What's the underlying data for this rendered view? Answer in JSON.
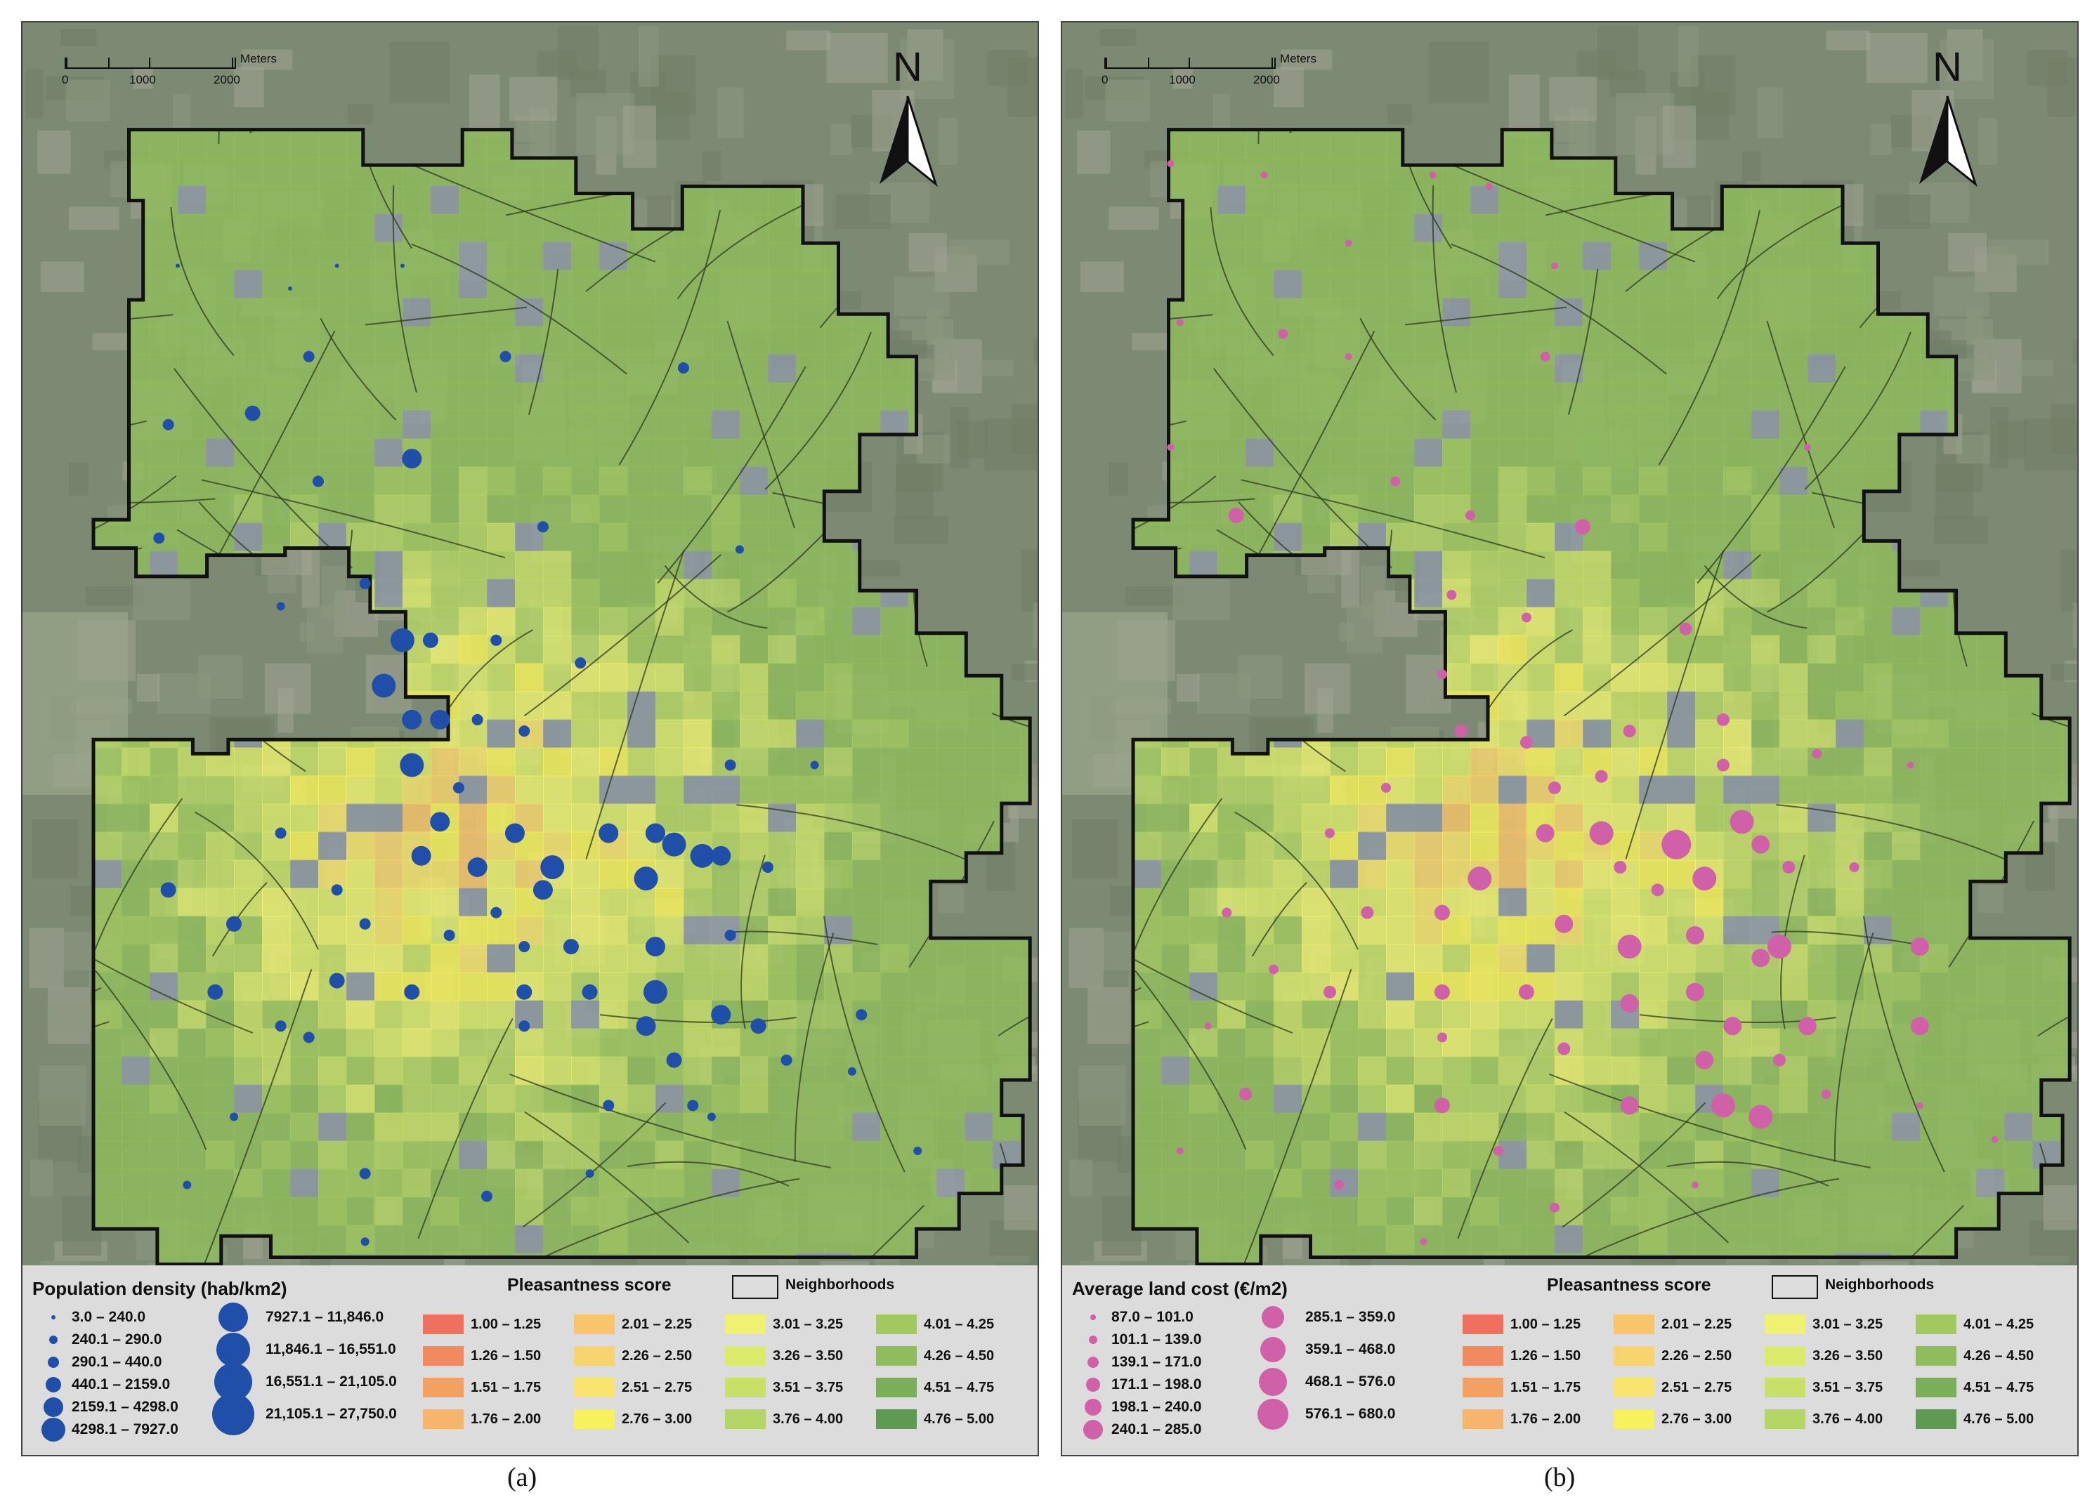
{
  "panels": [
    {
      "id": "a",
      "caption": "(a)",
      "scalebar": {
        "ticks": [
          "0",
          "1000",
          "2000"
        ],
        "unit": "Meters"
      },
      "north_label": "N",
      "symbol_legend": {
        "title": "Population density (hab/km2)",
        "color": "#1f4fa8",
        "classes": [
          "3.0  – 240.0",
          "240.1 – 290.0",
          "290.1 – 440.0",
          "440.1 – 2159.0",
          "2159.1 – 4298.0",
          "4298.1 – 7927.0",
          "7927.1 – 11,846.0",
          "11,846.1 – 16,551.0",
          "16,551.1 – 21,105.0",
          "21,105.1 – 27,750.0"
        ]
      },
      "points": [
        {
          "fx": 0.09,
          "fy": 0.12,
          "c": 0
        },
        {
          "fx": 0.26,
          "fy": 0.12,
          "c": 0
        },
        {
          "fx": 0.33,
          "fy": 0.12,
          "c": 0
        },
        {
          "fx": 0.21,
          "fy": 0.14,
          "c": 0
        },
        {
          "fx": 0.23,
          "fy": 0.2,
          "c": 2
        },
        {
          "fx": 0.44,
          "fy": 0.2,
          "c": 2
        },
        {
          "fx": 0.63,
          "fy": 0.21,
          "c": 2
        },
        {
          "fx": 0.08,
          "fy": 0.26,
          "c": 2
        },
        {
          "fx": 0.17,
          "fy": 0.25,
          "c": 3
        },
        {
          "fx": 0.34,
          "fy": 0.29,
          "c": 4
        },
        {
          "fx": 0.24,
          "fy": 0.31,
          "c": 2
        },
        {
          "fx": 0.07,
          "fy": 0.36,
          "c": 2
        },
        {
          "fx": 0.48,
          "fy": 0.35,
          "c": 2
        },
        {
          "fx": 0.69,
          "fy": 0.37,
          "c": 1
        },
        {
          "fx": 0.29,
          "fy": 0.4,
          "c": 2
        },
        {
          "fx": 0.2,
          "fy": 0.42,
          "c": 1
        },
        {
          "fx": 0.33,
          "fy": 0.45,
          "c": 5
        },
        {
          "fx": 0.36,
          "fy": 0.45,
          "c": 3
        },
        {
          "fx": 0.31,
          "fy": 0.49,
          "c": 5
        },
        {
          "fx": 0.43,
          "fy": 0.45,
          "c": 2
        },
        {
          "fx": 0.52,
          "fy": 0.47,
          "c": 2
        },
        {
          "fx": 0.34,
          "fy": 0.52,
          "c": 4
        },
        {
          "fx": 0.37,
          "fy": 0.52,
          "c": 4
        },
        {
          "fx": 0.41,
          "fy": 0.52,
          "c": 2
        },
        {
          "fx": 0.46,
          "fy": 0.53,
          "c": 2
        },
        {
          "fx": 0.34,
          "fy": 0.56,
          "c": 5
        },
        {
          "fx": 0.39,
          "fy": 0.58,
          "c": 2
        },
        {
          "fx": 0.68,
          "fy": 0.56,
          "c": 2
        },
        {
          "fx": 0.77,
          "fy": 0.56,
          "c": 1
        },
        {
          "fx": 0.37,
          "fy": 0.61,
          "c": 4
        },
        {
          "fx": 0.45,
          "fy": 0.62,
          "c": 4
        },
        {
          "fx": 0.55,
          "fy": 0.62,
          "c": 4
        },
        {
          "fx": 0.6,
          "fy": 0.62,
          "c": 4
        },
        {
          "fx": 0.62,
          "fy": 0.63,
          "c": 5
        },
        {
          "fx": 0.65,
          "fy": 0.64,
          "c": 5
        },
        {
          "fx": 0.67,
          "fy": 0.64,
          "c": 4
        },
        {
          "fx": 0.2,
          "fy": 0.62,
          "c": 2
        },
        {
          "fx": 0.35,
          "fy": 0.64,
          "c": 4
        },
        {
          "fx": 0.41,
          "fy": 0.65,
          "c": 4
        },
        {
          "fx": 0.49,
          "fy": 0.65,
          "c": 5
        },
        {
          "fx": 0.59,
          "fy": 0.66,
          "c": 5
        },
        {
          "fx": 0.72,
          "fy": 0.65,
          "c": 2
        },
        {
          "fx": 0.08,
          "fy": 0.67,
          "c": 3
        },
        {
          "fx": 0.26,
          "fy": 0.67,
          "c": 2
        },
        {
          "fx": 0.48,
          "fy": 0.67,
          "c": 4
        },
        {
          "fx": 0.43,
          "fy": 0.69,
          "c": 2
        },
        {
          "fx": 0.15,
          "fy": 0.7,
          "c": 3
        },
        {
          "fx": 0.29,
          "fy": 0.7,
          "c": 2
        },
        {
          "fx": 0.38,
          "fy": 0.71,
          "c": 2
        },
        {
          "fx": 0.46,
          "fy": 0.72,
          "c": 2
        },
        {
          "fx": 0.51,
          "fy": 0.72,
          "c": 3
        },
        {
          "fx": 0.6,
          "fy": 0.72,
          "c": 4
        },
        {
          "fx": 0.68,
          "fy": 0.71,
          "c": 2
        },
        {
          "fx": 0.26,
          "fy": 0.75,
          "c": 3
        },
        {
          "fx": 0.13,
          "fy": 0.76,
          "c": 3
        },
        {
          "fx": 0.34,
          "fy": 0.76,
          "c": 3
        },
        {
          "fx": 0.46,
          "fy": 0.76,
          "c": 3
        },
        {
          "fx": 0.53,
          "fy": 0.76,
          "c": 3
        },
        {
          "fx": 0.6,
          "fy": 0.76,
          "c": 5
        },
        {
          "fx": 0.67,
          "fy": 0.78,
          "c": 4
        },
        {
          "fx": 0.2,
          "fy": 0.79,
          "c": 2
        },
        {
          "fx": 0.23,
          "fy": 0.8,
          "c": 2
        },
        {
          "fx": 0.46,
          "fy": 0.79,
          "c": 2
        },
        {
          "fx": 0.59,
          "fy": 0.79,
          "c": 4
        },
        {
          "fx": 0.71,
          "fy": 0.79,
          "c": 3
        },
        {
          "fx": 0.82,
          "fy": 0.78,
          "c": 2
        },
        {
          "fx": 0.62,
          "fy": 0.82,
          "c": 3
        },
        {
          "fx": 0.74,
          "fy": 0.82,
          "c": 2
        },
        {
          "fx": 0.81,
          "fy": 0.83,
          "c": 1
        },
        {
          "fx": 0.55,
          "fy": 0.86,
          "c": 2
        },
        {
          "fx": 0.64,
          "fy": 0.86,
          "c": 2
        },
        {
          "fx": 0.66,
          "fy": 0.87,
          "c": 1
        },
        {
          "fx": 0.15,
          "fy": 0.87,
          "c": 1
        },
        {
          "fx": 0.88,
          "fy": 0.9,
          "c": 1
        },
        {
          "fx": 0.29,
          "fy": 0.92,
          "c": 2
        },
        {
          "fx": 0.53,
          "fy": 0.92,
          "c": 1
        },
        {
          "fx": 0.1,
          "fy": 0.93,
          "c": 1
        },
        {
          "fx": 0.42,
          "fy": 0.94,
          "c": 2
        },
        {
          "fx": 0.29,
          "fy": 0.98,
          "c": 1
        }
      ]
    },
    {
      "id": "b",
      "caption": "(b)",
      "scalebar": {
        "ticks": [
          "0",
          "1000",
          "2000"
        ],
        "unit": "Meters"
      },
      "north_label": "N",
      "symbol_legend": {
        "title": "Average land cost (€/m2)",
        "color": "#d061a8",
        "classes": [
          "87.0 – 101.0",
          "101.1 – 139.0",
          "139.1 – 171.0",
          "171.1 – 198.0",
          "198.1 – 240.0",
          "240.1 – 285.0",
          "285.1 – 359.0",
          "359.1 – 468.0",
          "468.1 – 576.0",
          "576.1 – 680.0"
        ]
      },
      "points": [
        {
          "fx": 0.04,
          "fy": 0.03,
          "c": 1
        },
        {
          "fx": 0.14,
          "fy": 0.04,
          "c": 1
        },
        {
          "fx": 0.32,
          "fy": 0.04,
          "c": 1
        },
        {
          "fx": 0.38,
          "fy": 0.05,
          "c": 1
        },
        {
          "fx": 0.23,
          "fy": 0.1,
          "c": 1
        },
        {
          "fx": 0.45,
          "fy": 0.12,
          "c": 1
        },
        {
          "fx": 0.05,
          "fy": 0.17,
          "c": 1
        },
        {
          "fx": 0.16,
          "fy": 0.18,
          "c": 2
        },
        {
          "fx": 0.23,
          "fy": 0.2,
          "c": 1
        },
        {
          "fx": 0.44,
          "fy": 0.2,
          "c": 2
        },
        {
          "fx": 0.04,
          "fy": 0.28,
          "c": 1
        },
        {
          "fx": 0.11,
          "fy": 0.34,
          "c": 4
        },
        {
          "fx": 0.28,
          "fy": 0.31,
          "c": 2
        },
        {
          "fx": 0.36,
          "fy": 0.34,
          "c": 2
        },
        {
          "fx": 0.48,
          "fy": 0.35,
          "c": 4
        },
        {
          "fx": 0.72,
          "fy": 0.28,
          "c": 1
        },
        {
          "fx": 0.34,
          "fy": 0.41,
          "c": 2
        },
        {
          "fx": 0.42,
          "fy": 0.43,
          "c": 2
        },
        {
          "fx": 0.59,
          "fy": 0.44,
          "c": 3
        },
        {
          "fx": 0.33,
          "fy": 0.48,
          "c": 2
        },
        {
          "fx": 0.35,
          "fy": 0.53,
          "c": 3
        },
        {
          "fx": 0.42,
          "fy": 0.54,
          "c": 3
        },
        {
          "fx": 0.53,
          "fy": 0.53,
          "c": 3
        },
        {
          "fx": 0.63,
          "fy": 0.52,
          "c": 3
        },
        {
          "fx": 0.45,
          "fy": 0.58,
          "c": 3
        },
        {
          "fx": 0.5,
          "fy": 0.57,
          "c": 3
        },
        {
          "fx": 0.63,
          "fy": 0.56,
          "c": 3
        },
        {
          "fx": 0.73,
          "fy": 0.55,
          "c": 2
        },
        {
          "fx": 0.83,
          "fy": 0.56,
          "c": 1
        },
        {
          "fx": 0.27,
          "fy": 0.58,
          "c": 2
        },
        {
          "fx": 0.44,
          "fy": 0.62,
          "c": 5
        },
        {
          "fx": 0.5,
          "fy": 0.62,
          "c": 6
        },
        {
          "fx": 0.58,
          "fy": 0.63,
          "c": 7
        },
        {
          "fx": 0.65,
          "fy": 0.61,
          "c": 6
        },
        {
          "fx": 0.67,
          "fy": 0.63,
          "c": 5
        },
        {
          "fx": 0.21,
          "fy": 0.62,
          "c": 2
        },
        {
          "fx": 0.37,
          "fy": 0.66,
          "c": 6
        },
        {
          "fx": 0.52,
          "fy": 0.65,
          "c": 3
        },
        {
          "fx": 0.61,
          "fy": 0.66,
          "c": 6
        },
        {
          "fx": 0.56,
          "fy": 0.67,
          "c": 3
        },
        {
          "fx": 0.7,
          "fy": 0.65,
          "c": 3
        },
        {
          "fx": 0.77,
          "fy": 0.65,
          "c": 2
        },
        {
          "fx": 0.1,
          "fy": 0.69,
          "c": 2
        },
        {
          "fx": 0.25,
          "fy": 0.69,
          "c": 3
        },
        {
          "fx": 0.33,
          "fy": 0.69,
          "c": 4
        },
        {
          "fx": 0.46,
          "fy": 0.7,
          "c": 5
        },
        {
          "fx": 0.6,
          "fy": 0.71,
          "c": 5
        },
        {
          "fx": 0.53,
          "fy": 0.72,
          "c": 6
        },
        {
          "fx": 0.69,
          "fy": 0.72,
          "c": 6
        },
        {
          "fx": 0.67,
          "fy": 0.73,
          "c": 5
        },
        {
          "fx": 0.84,
          "fy": 0.72,
          "c": 5
        },
        {
          "fx": 0.15,
          "fy": 0.74,
          "c": 2
        },
        {
          "fx": 0.21,
          "fy": 0.76,
          "c": 3
        },
        {
          "fx": 0.33,
          "fy": 0.76,
          "c": 4
        },
        {
          "fx": 0.42,
          "fy": 0.76,
          "c": 4
        },
        {
          "fx": 0.53,
          "fy": 0.77,
          "c": 5
        },
        {
          "fx": 0.6,
          "fy": 0.76,
          "c": 5
        },
        {
          "fx": 0.64,
          "fy": 0.79,
          "c": 5
        },
        {
          "fx": 0.72,
          "fy": 0.79,
          "c": 5
        },
        {
          "fx": 0.84,
          "fy": 0.79,
          "c": 5
        },
        {
          "fx": 0.08,
          "fy": 0.79,
          "c": 1
        },
        {
          "fx": 0.33,
          "fy": 0.8,
          "c": 2
        },
        {
          "fx": 0.46,
          "fy": 0.81,
          "c": 3
        },
        {
          "fx": 0.61,
          "fy": 0.82,
          "c": 5
        },
        {
          "fx": 0.69,
          "fy": 0.82,
          "c": 3
        },
        {
          "fx": 0.74,
          "fy": 0.85,
          "c": 2
        },
        {
          "fx": 0.12,
          "fy": 0.85,
          "c": 3
        },
        {
          "fx": 0.33,
          "fy": 0.86,
          "c": 4
        },
        {
          "fx": 0.53,
          "fy": 0.86,
          "c": 5
        },
        {
          "fx": 0.63,
          "fy": 0.86,
          "c": 6
        },
        {
          "fx": 0.67,
          "fy": 0.87,
          "c": 6
        },
        {
          "fx": 0.84,
          "fy": 0.86,
          "c": 1
        },
        {
          "fx": 0.05,
          "fy": 0.9,
          "c": 1
        },
        {
          "fx": 0.39,
          "fy": 0.9,
          "c": 2
        },
        {
          "fx": 0.6,
          "fy": 0.93,
          "c": 1
        },
        {
          "fx": 0.92,
          "fy": 0.89,
          "c": 1
        },
        {
          "fx": 0.22,
          "fy": 0.93,
          "c": 2
        },
        {
          "fx": 0.45,
          "fy": 0.95,
          "c": 2
        },
        {
          "fx": 0.31,
          "fy": 0.98,
          "c": 1
        }
      ]
    }
  ],
  "pleasantness_legend": {
    "title": "Pleasantness score",
    "neighborhoods_label": "Neighborhoods",
    "classes": [
      {
        "label": "1.00 – 1.25",
        "color": "#f07060"
      },
      {
        "label": "1.26 – 1.50",
        "color": "#f2895f"
      },
      {
        "label": "1.51 – 1.75",
        "color": "#f3a163"
      },
      {
        "label": "1.76 – 2.00",
        "color": "#f6b46c"
      },
      {
        "label": "2.01 – 2.25",
        "color": "#f8c56b"
      },
      {
        "label": "2.26 – 2.50",
        "color": "#f8d46e"
      },
      {
        "label": "2.51 – 2.75",
        "color": "#f8e46e"
      },
      {
        "label": "2.76 – 3.00",
        "color": "#f7f25c"
      },
      {
        "label": "3.01 – 3.25",
        "color": "#eef270"
      },
      {
        "label": "3.26 – 3.50",
        "color": "#dcea6c"
      },
      {
        "label": "3.51 – 3.75",
        "color": "#c8df68"
      },
      {
        "label": "3.76 – 4.00",
        "color": "#b6d567"
      },
      {
        "label": "4.01 – 4.25",
        "color": "#a2c95f"
      },
      {
        "label": "4.26 – 4.50",
        "color": "#90bd5c"
      },
      {
        "label": "4.51 – 4.75",
        "color": "#7aae58"
      },
      {
        "label": "4.76 – 5.00",
        "color": "#5f9a52"
      }
    ]
  },
  "colors": {
    "aerial_base": "#7d8a73",
    "boundary": "#111111",
    "street": "#2e3a20",
    "legend_bg": "#dcdcdc"
  }
}
